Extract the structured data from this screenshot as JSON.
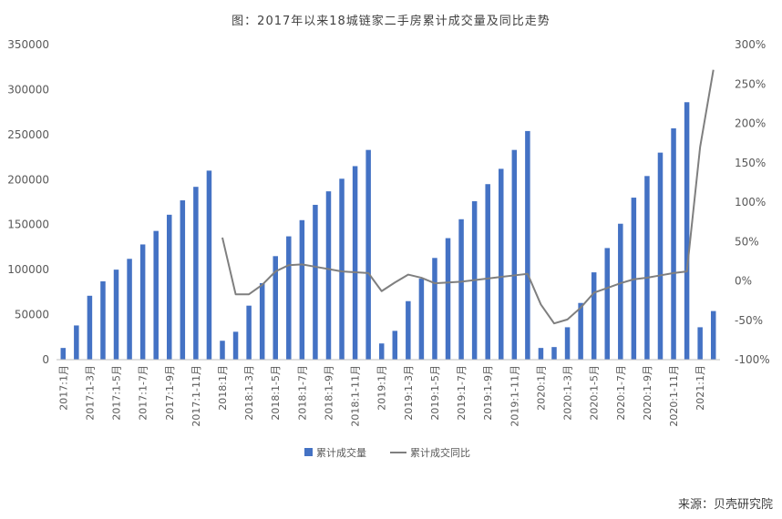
{
  "title": "图：2017年以来18城链家二手房累计成交量及同比走势",
  "source": "来源：贝壳研究院",
  "chart_data": {
    "type": "bar+line",
    "categories": [
      "2017:1月",
      "2017:1-2月",
      "2017:1-3月",
      "2017:1-4月",
      "2017:1-5月",
      "2017:1-6月",
      "2017:1-7月",
      "2017:1-8月",
      "2017:1-9月",
      "2017:1-10月",
      "2017:1-11月",
      "2017:1-12月",
      "2018:1月",
      "2018:1-2月",
      "2018:1-3月",
      "2018:1-4月",
      "2018:1-5月",
      "2018:1-6月",
      "2018:1-7月",
      "2018:1-8月",
      "2018:1-9月",
      "2018:1-10月",
      "2018:1-11月",
      "2018:1-12月",
      "2019:1月",
      "2019:1-2月",
      "2019:1-3月",
      "2019:1-4月",
      "2019:1-5月",
      "2019:1-6月",
      "2019:1-7月",
      "2019:1-8月",
      "2019:1-9月",
      "2019:1-10月",
      "2019:1-11月",
      "2019:1-12月",
      "2020:1月",
      "2020:1-2月",
      "2020:1-3月",
      "2020:1-4月",
      "2020:1-5月",
      "2020:1-6月",
      "2020:1-7月",
      "2020:1-8月",
      "2020:1-9月",
      "2020:1-10月",
      "2020:1-11月",
      "2020:1-12月",
      "2021:1月",
      "2021:1-2月"
    ],
    "x_tick_labels": [
      {
        "index": 0,
        "label": "2017:1月"
      },
      {
        "index": 2,
        "label": "2017:1-3月"
      },
      {
        "index": 4,
        "label": "2017:1-5月"
      },
      {
        "index": 6,
        "label": "2017:1-7月"
      },
      {
        "index": 8,
        "label": "2017:1-9月"
      },
      {
        "index": 10,
        "label": "2017:1-11月"
      },
      {
        "index": 12,
        "label": "2018:1月"
      },
      {
        "index": 14,
        "label": "2018:1-3月"
      },
      {
        "index": 16,
        "label": "2018:1-5月"
      },
      {
        "index": 18,
        "label": "2018:1-7月"
      },
      {
        "index": 20,
        "label": "2018:1-9月"
      },
      {
        "index": 22,
        "label": "2018:1-11月"
      },
      {
        "index": 24,
        "label": "2019:1月"
      },
      {
        "index": 26,
        "label": "2019:1-3月"
      },
      {
        "index": 28,
        "label": "2019:1-5月"
      },
      {
        "index": 30,
        "label": "2019:1-7月"
      },
      {
        "index": 32,
        "label": "2019:1-9月"
      },
      {
        "index": 34,
        "label": "2019:1-11月"
      },
      {
        "index": 36,
        "label": "2020:1月"
      },
      {
        "index": 38,
        "label": "2020:1-3月"
      },
      {
        "index": 40,
        "label": "2020:1-5月"
      },
      {
        "index": 42,
        "label": "2020:1-7月"
      },
      {
        "index": 44,
        "label": "2020:1-9月"
      },
      {
        "index": 46,
        "label": "2020:1-11月"
      },
      {
        "index": 48,
        "label": "2021:1月"
      }
    ],
    "series": [
      {
        "name": "累计成交量",
        "type": "bar",
        "axis": "left",
        "color": "#4472C4",
        "values": [
          13000,
          38000,
          71000,
          87000,
          100000,
          112000,
          128000,
          143000,
          161000,
          177000,
          192000,
          210000,
          21000,
          31000,
          60000,
          85000,
          115000,
          137000,
          155000,
          172000,
          187000,
          201000,
          215000,
          233000,
          18000,
          32000,
          65000,
          90000,
          113000,
          135000,
          156000,
          176000,
          195000,
          212000,
          233000,
          254000,
          13000,
          14000,
          36000,
          63000,
          97000,
          124000,
          151000,
          180000,
          204000,
          230000,
          257000,
          286000,
          36000,
          54000
        ]
      },
      {
        "name": "累计成交同比",
        "type": "line",
        "axis": "right",
        "unit": "%",
        "color": "#7F7F7F",
        "values": [
          null,
          null,
          null,
          null,
          null,
          null,
          null,
          null,
          null,
          null,
          null,
          null,
          55,
          -17,
          -17,
          -5,
          12,
          20,
          21,
          18,
          15,
          12,
          11,
          10,
          -13,
          -2,
          8,
          4,
          -3,
          -2,
          -1,
          1,
          3,
          5,
          7,
          9,
          -30,
          -54,
          -49,
          -34,
          -15,
          -9,
          -3,
          2,
          4,
          7,
          10,
          12,
          170,
          268
        ]
      }
    ],
    "y_left": {
      "min": 0,
      "max": 350000,
      "ticks": [
        0,
        50000,
        100000,
        150000,
        200000,
        250000,
        300000,
        350000
      ]
    },
    "y_right": {
      "min": -100,
      "max": 300,
      "ticks": [
        -100,
        -50,
        0,
        50,
        100,
        150,
        200,
        250,
        300
      ]
    },
    "y_right_tick_labels": [
      "-100%",
      "-50%",
      "0%",
      "50%",
      "100%",
      "150%",
      "200%",
      "250%",
      "300%"
    ],
    "legend": {
      "position": "bottom",
      "items": [
        "累计成交量",
        "累计成交同比"
      ]
    },
    "grid": false
  }
}
